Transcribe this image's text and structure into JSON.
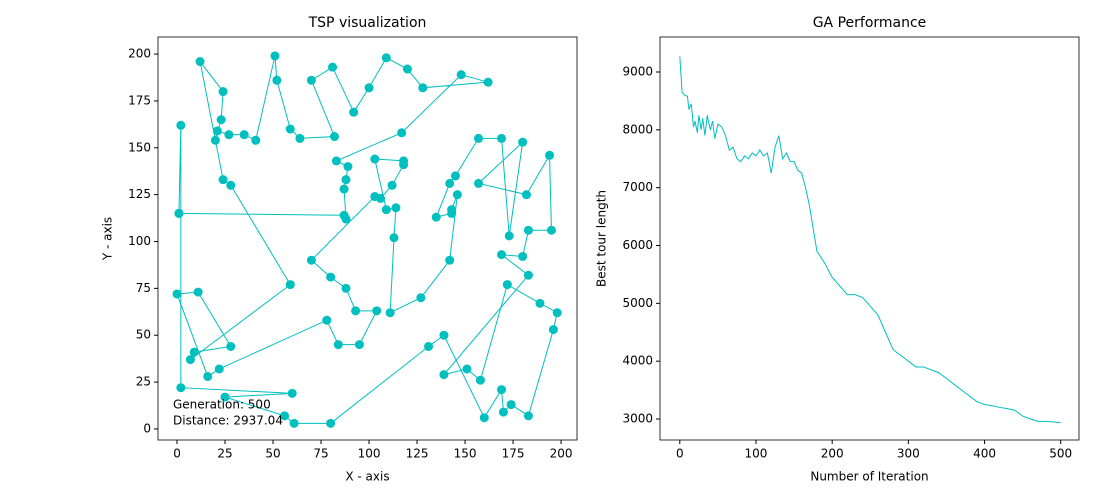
{
  "chart_data": [
    {
      "type": "line",
      "title": "TSP visualization",
      "x_label": "X - axis",
      "y_label": "Y - axis",
      "color": "#00bfbf",
      "marker": true,
      "annotations": [
        "Generation: 500",
        "Distance: 2937.04"
      ],
      "x": [
        1,
        87,
        88,
        87,
        88,
        89,
        83,
        117,
        148,
        162,
        128,
        120,
        109,
        100,
        92,
        81,
        70,
        82,
        64,
        59,
        52,
        51,
        41,
        35,
        27,
        21,
        20,
        23,
        24,
        12,
        24,
        28,
        59,
        7,
        9,
        28,
        11,
        0,
        16,
        22,
        78,
        84,
        95,
        104,
        93,
        88,
        80,
        70,
        103,
        106,
        112,
        118,
        118,
        103,
        109,
        114,
        113,
        111,
        127,
        142,
        146,
        143,
        143,
        135,
        142,
        145,
        157,
        169,
        173,
        180,
        157,
        182,
        194,
        195,
        183,
        180,
        169,
        183,
        139,
        151,
        158,
        172,
        189,
        198,
        196,
        183,
        174,
        170,
        169,
        160,
        139,
        131,
        80,
        61,
        56,
        25,
        60,
        2,
        2,
        1
      ],
      "series": [
        {
          "name": "tour",
          "values": [
            115,
            114,
            112,
            128,
            133,
            140,
            143,
            158,
            189,
            185,
            182,
            192,
            198,
            182,
            169,
            193,
            186,
            156,
            155,
            160,
            186,
            199,
            154,
            157,
            157,
            159,
            154,
            165,
            180,
            196,
            133,
            130,
            77,
            37,
            41,
            44,
            73,
            72,
            28,
            32,
            58,
            45,
            45,
            63,
            63,
            75,
            81,
            90,
            124,
            123,
            130,
            141,
            143,
            144,
            117,
            118,
            102,
            62,
            70,
            90,
            125,
            117,
            115,
            113,
            131,
            135,
            155,
            155,
            103,
            153,
            131,
            125,
            146,
            106,
            106,
            92,
            93,
            82,
            29,
            32,
            26,
            77,
            67,
            62,
            53,
            7,
            13,
            9,
            21,
            6,
            50,
            44,
            3,
            3,
            7,
            17,
            19,
            22,
            162,
            115
          ]
        }
      ],
      "xlim": [
        -9.9,
        208.3
      ],
      "ylim": [
        -5.9,
        209.1
      ],
      "xticks": [
        0,
        25,
        50,
        75,
        100,
        125,
        150,
        175,
        200
      ],
      "yticks": [
        0,
        25,
        50,
        75,
        100,
        125,
        150,
        175,
        200
      ]
    },
    {
      "type": "line",
      "title": "GA Performance",
      "x_label": "Number of Iteration",
      "y_label": "Best tour length",
      "color": "#00bfbf",
      "marker": false,
      "x": [
        0,
        3,
        6,
        10,
        12,
        15,
        18,
        20,
        23,
        25,
        28,
        30,
        33,
        36,
        40,
        43,
        46,
        50,
        55,
        60,
        65,
        70,
        75,
        80,
        85,
        90,
        95,
        100,
        105,
        110,
        115,
        120,
        125,
        130,
        135,
        140,
        145,
        150,
        155,
        160,
        165,
        170,
        175,
        180,
        190,
        200,
        210,
        220,
        230,
        240,
        250,
        260,
        270,
        280,
        290,
        300,
        310,
        320,
        330,
        340,
        350,
        360,
        370,
        380,
        390,
        400,
        410,
        420,
        430,
        440,
        450,
        460,
        470,
        480,
        490,
        500
      ],
      "series": [
        {
          "name": "best",
          "values": [
            9270,
            8650,
            8600,
            8580,
            8350,
            8450,
            8050,
            8150,
            7950,
            8250,
            8000,
            8200,
            7900,
            8250,
            8000,
            8150,
            7850,
            8100,
            8050,
            7900,
            7650,
            7700,
            7500,
            7450,
            7550,
            7500,
            7600,
            7550,
            7650,
            7550,
            7600,
            7250,
            7700,
            7900,
            7500,
            7600,
            7450,
            7450,
            7300,
            7250,
            7000,
            6700,
            6300,
            5900,
            5700,
            5450,
            5300,
            5150,
            5150,
            5100,
            4950,
            4800,
            4500,
            4200,
            4100,
            4000,
            3900,
            3900,
            3850,
            3800,
            3700,
            3600,
            3500,
            3400,
            3300,
            3250,
            3230,
            3200,
            3180,
            3150,
            3050,
            3000,
            2960,
            2960,
            2950,
            2937
          ]
        }
      ],
      "xlim": [
        -26,
        524
      ],
      "ylim": [
        2637,
        9605
      ],
      "xticks": [
        0,
        100,
        200,
        300,
        400,
        500
      ],
      "yticks": [
        3000,
        4000,
        5000,
        6000,
        7000,
        8000,
        9000
      ]
    }
  ]
}
